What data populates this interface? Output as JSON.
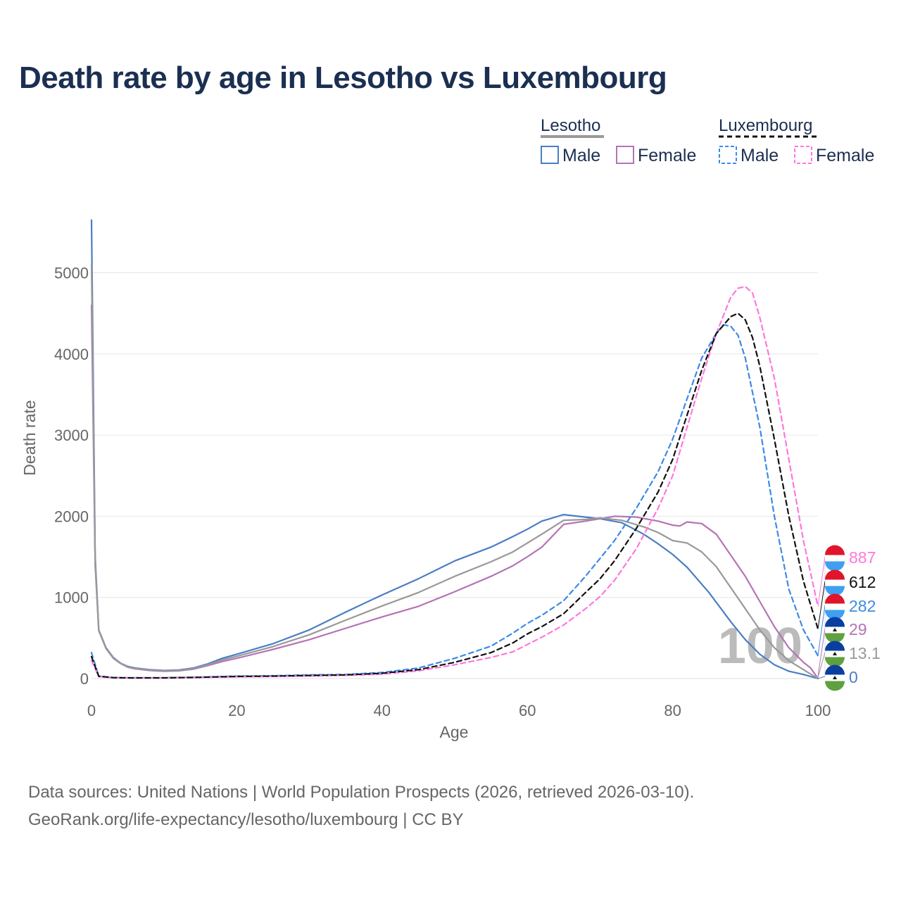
{
  "title": "Death rate by age in Lesotho vs Luxembourg",
  "footer": {
    "line1": "Data sources: United Nations | World Population Prospects (2026, retrieved 2026-03-10).",
    "line2": "GeoRank.org/life-expectancy/lesotho/luxembourg | CC BY"
  },
  "legend": {
    "lesotho": {
      "label": "Lesotho",
      "male": "Male",
      "female": "Female"
    },
    "luxembourg": {
      "label": "Luxembourg",
      "male": "Male",
      "female": "Female"
    }
  },
  "watermark": "100",
  "end_labels": [
    "887",
    "612",
    "282",
    "29",
    "13.1",
    "0"
  ],
  "colors": {
    "male": "#4a7ec4",
    "female": "#b474b4",
    "lesotho_total": "#999999",
    "lux_male": "#3d8ae6",
    "lux_female": "#ff77dd",
    "lux_total": "#111111"
  },
  "chart_data": {
    "type": "line",
    "title": "Death rate by age in Lesotho vs Luxembourg",
    "xlabel": "Age",
    "ylabel": "Death rate",
    "xlim": [
      0,
      100
    ],
    "ylim": [
      0,
      5500
    ],
    "xticks": [
      0,
      20,
      40,
      60,
      80,
      100
    ],
    "yticks": [
      0,
      1000,
      2000,
      3000,
      4000,
      5000
    ],
    "grid": true,
    "legend_position": "top-right",
    "series": [
      {
        "name": "Lesotho Male",
        "country": "Lesotho",
        "sex": "Male",
        "style": "solid",
        "color": "#4a7ec4",
        "points": [
          [
            0,
            5650
          ],
          [
            0.5,
            1500
          ],
          [
            1,
            600
          ],
          [
            2,
            380
          ],
          [
            3,
            260
          ],
          [
            4,
            190
          ],
          [
            5,
            150
          ],
          [
            6,
            130
          ],
          [
            8,
            110
          ],
          [
            10,
            100
          ],
          [
            12,
            105
          ],
          [
            14,
            130
          ],
          [
            16,
            180
          ],
          [
            18,
            250
          ],
          [
            20,
            300
          ],
          [
            25,
            430
          ],
          [
            30,
            600
          ],
          [
            35,
            820
          ],
          [
            40,
            1030
          ],
          [
            45,
            1230
          ],
          [
            50,
            1450
          ],
          [
            55,
            1620
          ],
          [
            58,
            1750
          ],
          [
            60,
            1840
          ],
          [
            62,
            1940
          ],
          [
            65,
            2020
          ],
          [
            68,
            1990
          ],
          [
            70,
            1970
          ],
          [
            73,
            1920
          ],
          [
            76,
            1780
          ],
          [
            78,
            1660
          ],
          [
            80,
            1530
          ],
          [
            82,
            1370
          ],
          [
            85,
            1060
          ],
          [
            88,
            700
          ],
          [
            90,
            480
          ],
          [
            92,
            300
          ],
          [
            94,
            170
          ],
          [
            96,
            90
          ],
          [
            98,
            50
          ],
          [
            100,
            0
          ]
        ]
      },
      {
        "name": "Lesotho Female",
        "country": "Lesotho",
        "sex": "Female",
        "style": "solid",
        "color": "#b474b4",
        "points": [
          [
            0,
            4600
          ],
          [
            0.5,
            1400
          ],
          [
            1,
            590
          ],
          [
            2,
            370
          ],
          [
            3,
            250
          ],
          [
            4,
            185
          ],
          [
            5,
            140
          ],
          [
            6,
            120
          ],
          [
            8,
            100
          ],
          [
            10,
            90
          ],
          [
            12,
            95
          ],
          [
            14,
            115
          ],
          [
            16,
            160
          ],
          [
            18,
            210
          ],
          [
            20,
            250
          ],
          [
            25,
            360
          ],
          [
            30,
            480
          ],
          [
            35,
            620
          ],
          [
            40,
            760
          ],
          [
            45,
            890
          ],
          [
            50,
            1070
          ],
          [
            55,
            1260
          ],
          [
            58,
            1390
          ],
          [
            60,
            1500
          ],
          [
            62,
            1620
          ],
          [
            65,
            1900
          ],
          [
            68,
            1940
          ],
          [
            70,
            1970
          ],
          [
            72,
            2000
          ],
          [
            75,
            1990
          ],
          [
            78,
            1940
          ],
          [
            80,
            1890
          ],
          [
            81,
            1880
          ],
          [
            82,
            1930
          ],
          [
            84,
            1910
          ],
          [
            86,
            1780
          ],
          [
            88,
            1520
          ],
          [
            90,
            1260
          ],
          [
            92,
            950
          ],
          [
            94,
            640
          ],
          [
            96,
            380
          ],
          [
            98,
            200
          ],
          [
            99,
            130
          ],
          [
            100,
            0
          ]
        ]
      },
      {
        "name": "Lesotho Total",
        "country": "Lesotho",
        "sex": "Total",
        "style": "solid",
        "color": "#999999",
        "points": [
          [
            0,
            5100
          ],
          [
            0.5,
            1450
          ],
          [
            1,
            595
          ],
          [
            2,
            375
          ],
          [
            3,
            255
          ],
          [
            4,
            188
          ],
          [
            5,
            145
          ],
          [
            6,
            125
          ],
          [
            8,
            105
          ],
          [
            10,
            95
          ],
          [
            12,
            100
          ],
          [
            14,
            122
          ],
          [
            16,
            170
          ],
          [
            18,
            230
          ],
          [
            20,
            275
          ],
          [
            25,
            395
          ],
          [
            30,
            540
          ],
          [
            35,
            720
          ],
          [
            40,
            895
          ],
          [
            45,
            1060
          ],
          [
            50,
            1260
          ],
          [
            55,
            1440
          ],
          [
            58,
            1560
          ],
          [
            60,
            1670
          ],
          [
            62,
            1780
          ],
          [
            65,
            1950
          ],
          [
            68,
            1960
          ],
          [
            70,
            1980
          ],
          [
            73,
            1950
          ],
          [
            76,
            1870
          ],
          [
            78,
            1800
          ],
          [
            80,
            1700
          ],
          [
            82,
            1670
          ],
          [
            84,
            1560
          ],
          [
            86,
            1380
          ],
          [
            88,
            1120
          ],
          [
            90,
            860
          ],
          [
            92,
            600
          ],
          [
            94,
            380
          ],
          [
            96,
            220
          ],
          [
            98,
            110
          ],
          [
            100,
            0
          ]
        ]
      },
      {
        "name": "Luxembourg Male",
        "country": "Luxembourg",
        "sex": "Male",
        "style": "dashed",
        "color": "#3d8ae6",
        "points": [
          [
            0,
            320
          ],
          [
            1,
            30
          ],
          [
            3,
            12
          ],
          [
            5,
            10
          ],
          [
            10,
            10
          ],
          [
            15,
            18
          ],
          [
            20,
            30
          ],
          [
            25,
            35
          ],
          [
            30,
            45
          ],
          [
            35,
            50
          ],
          [
            40,
            75
          ],
          [
            45,
            130
          ],
          [
            50,
            250
          ],
          [
            55,
            400
          ],
          [
            58,
            560
          ],
          [
            60,
            680
          ],
          [
            62,
            780
          ],
          [
            65,
            960
          ],
          [
            68,
            1260
          ],
          [
            70,
            1480
          ],
          [
            72,
            1700
          ],
          [
            75,
            2100
          ],
          [
            78,
            2550
          ],
          [
            80,
            2950
          ],
          [
            82,
            3450
          ],
          [
            84,
            3950
          ],
          [
            86,
            4250
          ],
          [
            87,
            4360
          ],
          [
            88,
            4340
          ],
          [
            89,
            4230
          ],
          [
            90,
            3950
          ],
          [
            92,
            3100
          ],
          [
            94,
            2000
          ],
          [
            96,
            1100
          ],
          [
            98,
            600
          ],
          [
            100,
            282
          ]
        ]
      },
      {
        "name": "Luxembourg Female",
        "country": "Luxembourg",
        "sex": "Female",
        "style": "dashed",
        "color": "#ff77dd",
        "points": [
          [
            0,
            220
          ],
          [
            1,
            25
          ],
          [
            3,
            10
          ],
          [
            5,
            8
          ],
          [
            10,
            8
          ],
          [
            15,
            15
          ],
          [
            20,
            22
          ],
          [
            25,
            26
          ],
          [
            30,
            32
          ],
          [
            35,
            40
          ],
          [
            40,
            55
          ],
          [
            45,
            95
          ],
          [
            50,
            170
          ],
          [
            55,
            260
          ],
          [
            58,
            330
          ],
          [
            60,
            420
          ],
          [
            62,
            510
          ],
          [
            65,
            660
          ],
          [
            68,
            860
          ],
          [
            70,
            1010
          ],
          [
            72,
            1210
          ],
          [
            75,
            1600
          ],
          [
            78,
            2100
          ],
          [
            80,
            2500
          ],
          [
            82,
            3100
          ],
          [
            84,
            3700
          ],
          [
            86,
            4250
          ],
          [
            88,
            4700
          ],
          [
            89,
            4810
          ],
          [
            90,
            4830
          ],
          [
            91,
            4750
          ],
          [
            92,
            4450
          ],
          [
            94,
            3700
          ],
          [
            96,
            2700
          ],
          [
            98,
            1700
          ],
          [
            100,
            887
          ]
        ]
      },
      {
        "name": "Luxembourg Total",
        "country": "Luxembourg",
        "sex": "Total",
        "style": "dashed",
        "color": "#111111",
        "points": [
          [
            0,
            270
          ],
          [
            1,
            28
          ],
          [
            3,
            11
          ],
          [
            5,
            9
          ],
          [
            10,
            9
          ],
          [
            15,
            16
          ],
          [
            20,
            26
          ],
          [
            25,
            30
          ],
          [
            30,
            38
          ],
          [
            35,
            45
          ],
          [
            40,
            65
          ],
          [
            45,
            110
          ],
          [
            50,
            200
          ],
          [
            55,
            320
          ],
          [
            58,
            440
          ],
          [
            60,
            550
          ],
          [
            62,
            640
          ],
          [
            65,
            800
          ],
          [
            68,
            1060
          ],
          [
            70,
            1230
          ],
          [
            72,
            1450
          ],
          [
            75,
            1850
          ],
          [
            78,
            2300
          ],
          [
            80,
            2700
          ],
          [
            82,
            3250
          ],
          [
            84,
            3800
          ],
          [
            86,
            4250
          ],
          [
            88,
            4460
          ],
          [
            89,
            4500
          ],
          [
            90,
            4420
          ],
          [
            91,
            4200
          ],
          [
            92,
            3850
          ],
          [
            94,
            2950
          ],
          [
            96,
            2000
          ],
          [
            98,
            1200
          ],
          [
            100,
            612
          ]
        ]
      }
    ],
    "end_values": [
      887,
      612,
      282,
      29,
      13.1,
      0
    ]
  }
}
